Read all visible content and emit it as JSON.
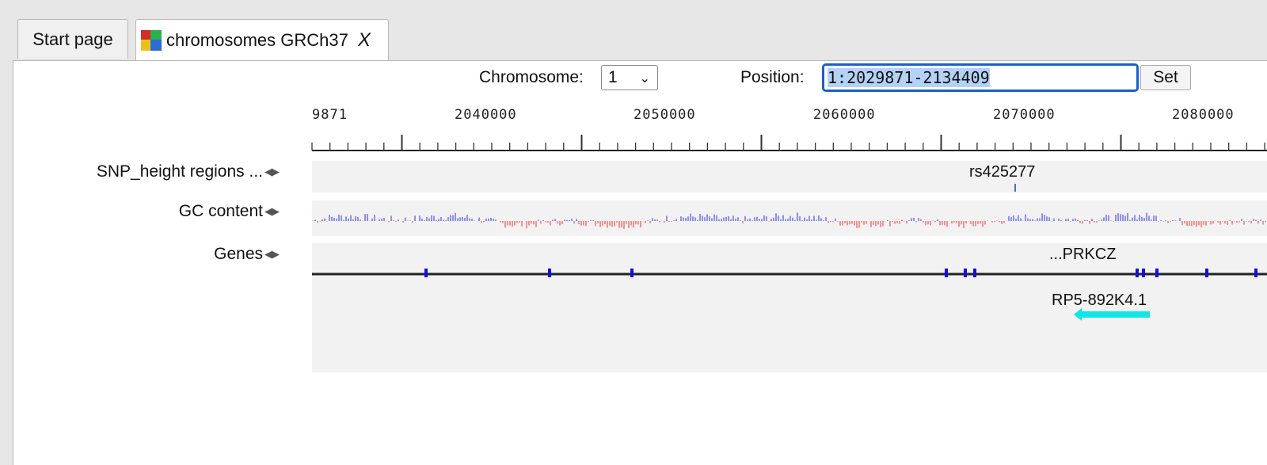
{
  "tabs": {
    "start_label": "Start page",
    "active_label": "chromosomes GRCh37",
    "close_label": "X"
  },
  "controls": {
    "chromosome_label": "Chromosome:",
    "chromosome_value": "1",
    "position_label": "Position:",
    "position_value": "1:2029871-2134409",
    "set_label": "Set"
  },
  "ruler": {
    "labels": [
      "9871",
      "2040000",
      "2050000",
      "2060000",
      "2070000",
      "2080000"
    ]
  },
  "tracks": {
    "snp": {
      "name": "SNP_height regions ...",
      "feature": "rs425277"
    },
    "gc": {
      "name": "GC content"
    },
    "genes": {
      "name": "Genes",
      "gene_top": "...PRKCZ",
      "gene_bottom": "RP5-892K4.1"
    }
  },
  "colors": {
    "gc_high": "#8f8ff5",
    "gc_low": "#f59090",
    "gene_line": "#222222",
    "exon": "#1010e0",
    "lncrna": "#10e6e6",
    "selection": "#1a5fd0"
  },
  "icons": {
    "tab_icon": "genome-browser-icon",
    "track_arrows": "left-right-arrows-icon",
    "dropdown": "chevron-down-icon"
  }
}
